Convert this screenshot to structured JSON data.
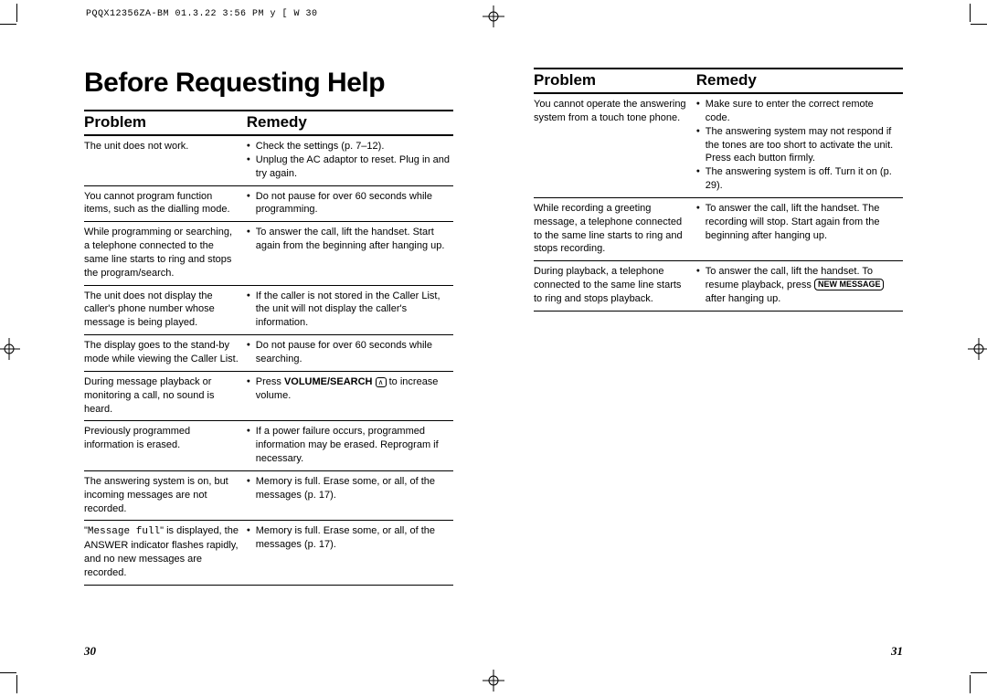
{
  "header_info": "PQQX12356ZA-BM 01.3.22 3:56 PM  y [ W  30",
  "title": "Before Requesting Help",
  "columns": {
    "problem": "Problem",
    "remedy": "Remedy"
  },
  "left_page": {
    "number": "30",
    "rows": [
      {
        "problem": "The unit does not work.",
        "remedies": [
          "Check the settings (p. 7–12).",
          "Unplug the AC adaptor to reset. Plug in and try again."
        ]
      },
      {
        "problem": "You cannot program function items, such as the dialling mode.",
        "remedies": [
          "Do not pause for over 60 seconds while programming."
        ]
      },
      {
        "problem": "While programming or searching, a telephone connected to the same line starts to ring and stops the program/search.",
        "remedies": [
          "To answer the call, lift the handset. Start again from the beginning after hanging up."
        ]
      },
      {
        "problem": "The unit does not display the caller's phone number whose message is being played.",
        "remedies": [
          "If the caller is not stored in the Caller List, the unit will not display the caller's information."
        ]
      },
      {
        "problem": "The display goes to the stand-by mode while viewing the Caller List.",
        "remedies": [
          "Do not pause for over 60 seconds while searching."
        ]
      },
      {
        "problem": "During message playback or monitoring a call, no sound is heard.",
        "remedies": [
          "Press <strong>VOLUME/SEARCH</strong> <span class=\"up-key\">∧</span> to increase volume."
        ]
      },
      {
        "problem": "Previously programmed information is erased.",
        "remedies": [
          "If a power failure occurs, programmed information may be erased. Reprogram if necessary."
        ]
      },
      {
        "problem": "The answering system is on, but incoming messages are not recorded.",
        "remedies": [
          "Memory is full. Erase some, or all, of the messages (p. 17)."
        ]
      },
      {
        "problem": "\"<span class=\"mono\">Message full</span>\" is displayed, the ANSWER indicator flashes rapidly, and no new messages are recorded.",
        "remedies": [
          "Memory is full. Erase some, or all, of the messages (p. 17)."
        ]
      }
    ]
  },
  "right_page": {
    "number": "31",
    "rows": [
      {
        "problem": "You cannot operate the answering system from a touch tone phone.",
        "remedies": [
          "Make sure to enter the correct remote code.",
          "The answering system may not respond if the tones are too short to activate the unit. Press each button firmly.",
          "The answering system is off. Turn it on (p. 29)."
        ]
      },
      {
        "problem": "While recording a greeting message, a telephone connected to the same line starts to ring and stops recording.",
        "remedies": [
          "To answer the call, lift the handset. The recording will stop. Start again from the beginning after hanging up."
        ]
      },
      {
        "problem": "During playback, a telephone connected to the same line starts to ring and stops playback.",
        "remedies": [
          "To answer the call, lift the handset. To resume playback, press <span class=\"btn-box\">NEW MESSAGE</span> after hanging up."
        ]
      }
    ]
  }
}
